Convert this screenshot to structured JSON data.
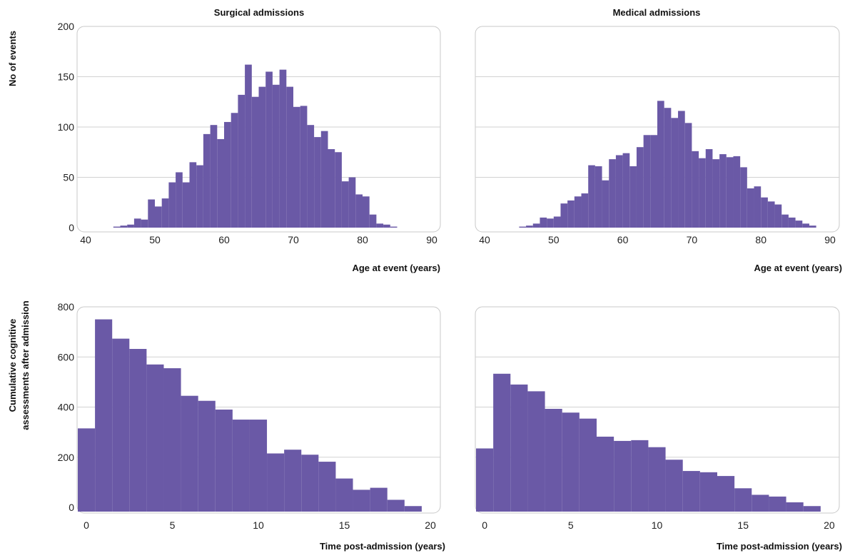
{
  "figure": {
    "bar_color": "#6a59a6",
    "row1_ylabel": "No of events",
    "row2_ylabel_lines": [
      "Cumulative cognitive",
      "assessments after admission"
    ]
  },
  "chart_data": [
    {
      "type": "bar",
      "title": "Surgical admissions",
      "xlabel": "Age at event (years)",
      "ylabel": "No of events",
      "xlim": [
        40,
        90
      ],
      "ylim": [
        0,
        200
      ],
      "xticks": [
        40,
        50,
        60,
        70,
        80,
        90
      ],
      "yticks": [
        0,
        50,
        100,
        150,
        200
      ],
      "bin_start": 44,
      "bin_width": 1,
      "values": [
        1,
        2,
        3,
        9,
        8,
        28,
        21,
        29,
        45,
        55,
        45,
        65,
        62,
        93,
        102,
        88,
        105,
        114,
        132,
        162,
        130,
        140,
        155,
        142,
        157,
        140,
        120,
        121,
        102,
        90,
        96,
        78,
        75,
        46,
        50,
        33,
        31,
        13,
        4,
        3,
        1
      ],
      "grid": true
    },
    {
      "type": "bar",
      "title": "Medical admissions",
      "xlabel": "Age at event (years)",
      "ylabel": "No of events",
      "xlim": [
        40,
        90
      ],
      "ylim": [
        0,
        200
      ],
      "xticks": [
        40,
        50,
        60,
        70,
        80,
        90
      ],
      "yticks": [
        0,
        50,
        100,
        150,
        200
      ],
      "bin_start": 45,
      "bin_width": 1,
      "values": [
        1,
        2,
        4,
        10,
        9,
        11,
        24,
        27,
        31,
        34,
        62,
        61,
        47,
        68,
        72,
        74,
        61,
        80,
        92,
        92,
        126,
        119,
        109,
        116,
        104,
        76,
        69,
        78,
        68,
        73,
        70,
        71,
        60,
        39,
        41,
        30,
        26,
        23,
        13,
        10,
        7,
        4,
        2
      ],
      "grid": true
    },
    {
      "type": "bar",
      "title": "",
      "xlabel": "Time post-admission (years)",
      "ylabel": "Cumulative cognitive assessments after admission",
      "xlim": [
        -0.5,
        20.5
      ],
      "ylim": [
        -10,
        800
      ],
      "xticks": [
        0,
        5,
        10,
        15,
        20
      ],
      "yticks": [
        0,
        200,
        400,
        600,
        800
      ],
      "bin_start": -0.5,
      "bin_width": 1,
      "values": [
        315,
        750,
        673,
        632,
        570,
        555,
        445,
        425,
        390,
        350,
        350,
        215,
        230,
        210,
        182,
        115,
        70,
        78,
        30,
        5
      ],
      "grid": true
    },
    {
      "type": "bar",
      "title": "",
      "xlabel": "Time post-admission (years)",
      "ylabel": "Cumulative cognitive assessments after admission",
      "xlim": [
        -0.5,
        20.5
      ],
      "ylim": [
        -10,
        800
      ],
      "xticks": [
        0,
        5,
        10,
        15,
        20
      ],
      "yticks": [
        0,
        200,
        400,
        600,
        800
      ],
      "bin_start": -0.5,
      "bin_width": 1,
      "values": [
        235,
        533,
        490,
        463,
        393,
        378,
        354,
        282,
        265,
        268,
        240,
        190,
        145,
        140,
        125,
        76,
        50,
        43,
        20,
        5
      ],
      "grid": true
    }
  ]
}
